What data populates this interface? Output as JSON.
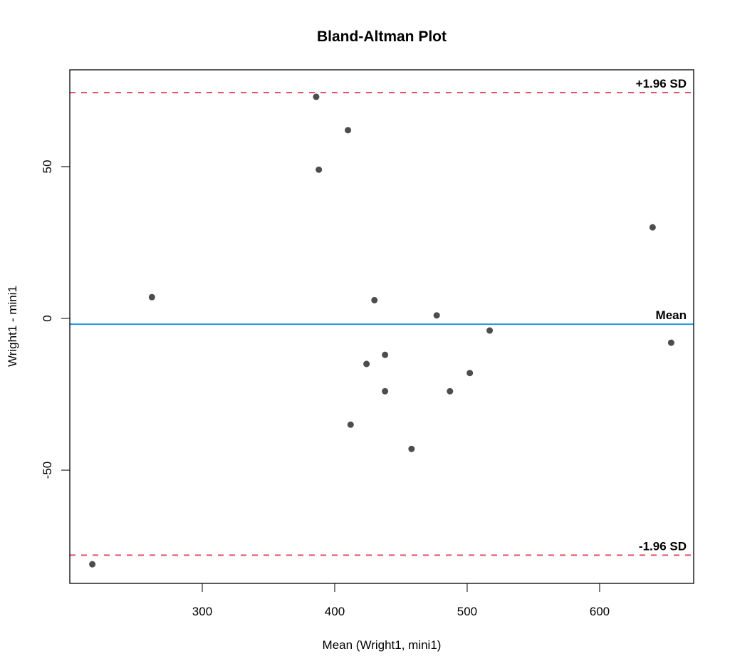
{
  "chart_data": {
    "type": "scatter",
    "title": "Bland-Altman Plot",
    "xlabel": "Mean (Wright1, mini1)",
    "ylabel": "Wright1 - mini1",
    "xlim": [
      200,
      671
    ],
    "ylim": [
      -87.3,
      81.9
    ],
    "x_ticks": [
      300,
      400,
      500,
      600
    ],
    "y_ticks": [
      -50,
      0,
      50
    ],
    "grid": false,
    "points": [
      {
        "x": 217,
        "y": -81
      },
      {
        "x": 262,
        "y": 7
      },
      {
        "x": 386,
        "y": 73
      },
      {
        "x": 388,
        "y": 49
      },
      {
        "x": 410,
        "y": 62
      },
      {
        "x": 412,
        "y": -35
      },
      {
        "x": 424,
        "y": -15
      },
      {
        "x": 430,
        "y": 6
      },
      {
        "x": 438,
        "y": -12
      },
      {
        "x": 438,
        "y": -24
      },
      {
        "x": 458,
        "y": -43
      },
      {
        "x": 477,
        "y": 1
      },
      {
        "x": 487,
        "y": -24
      },
      {
        "x": 502,
        "y": -18
      },
      {
        "x": 517,
        "y": -4
      },
      {
        "x": 640,
        "y": 30
      },
      {
        "x": 654,
        "y": -8
      }
    ],
    "reference_lines": [
      {
        "name": "+1.96 SD",
        "label": "+1.96 SD",
        "y": 74.4,
        "style": "dashed",
        "color": "#DF536B"
      },
      {
        "name": "Mean",
        "label": "Mean",
        "y": -1.9,
        "style": "solid",
        "color": "#2297E6"
      },
      {
        "name": "-1.96 SD",
        "label": "-1.96 SD",
        "y": -78.0,
        "style": "dashed",
        "color": "#DF536B"
      }
    ],
    "point_color": "#4D4D4D"
  }
}
